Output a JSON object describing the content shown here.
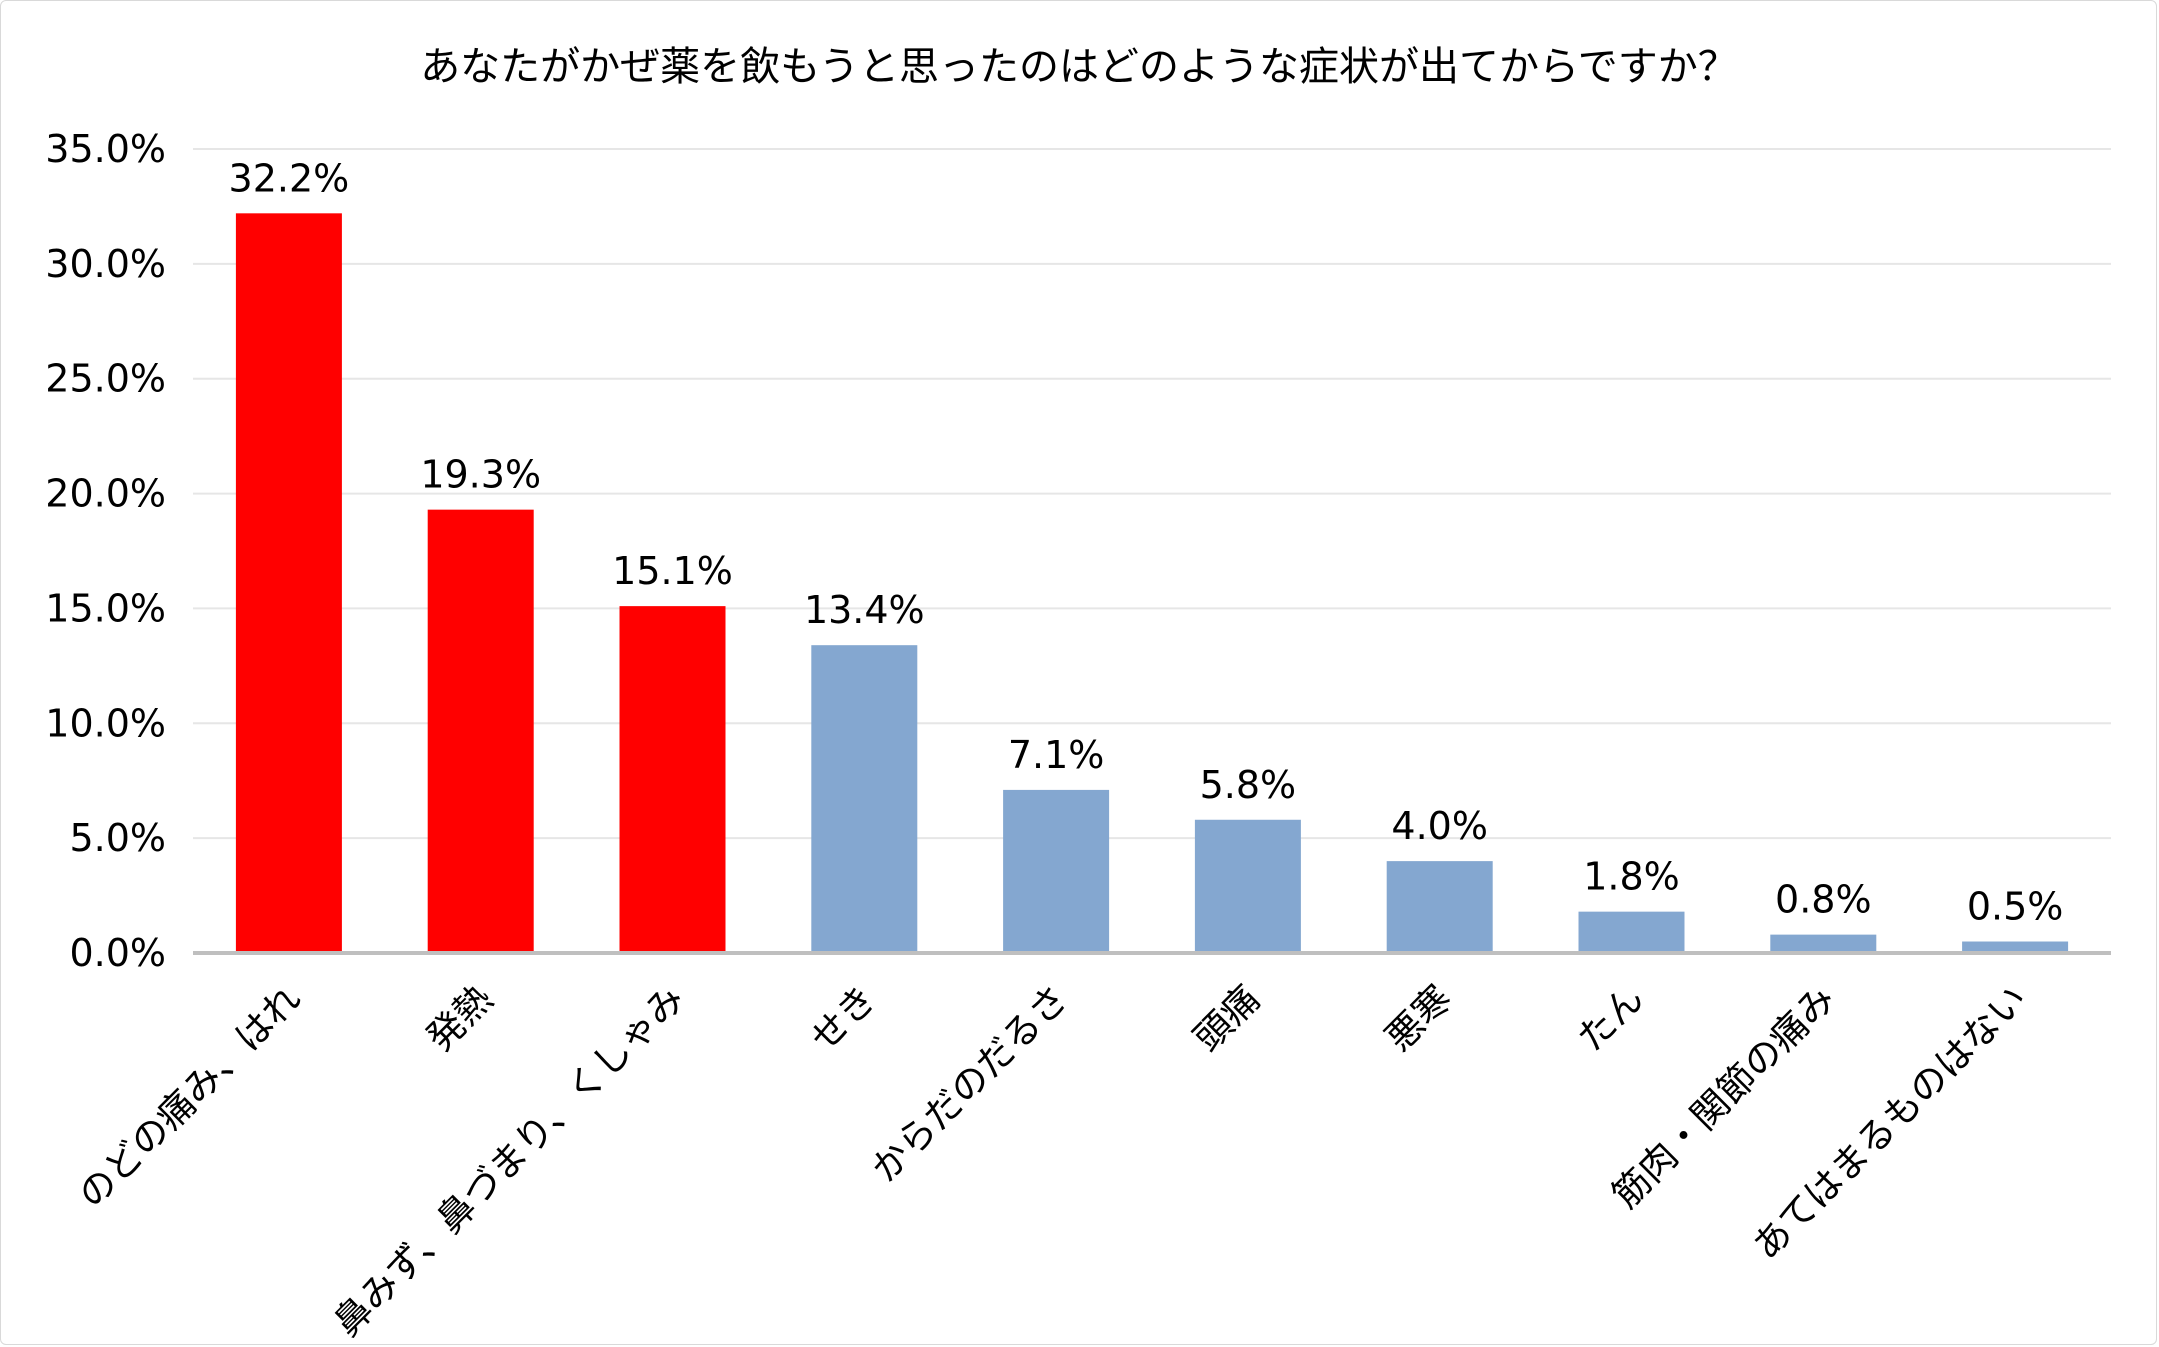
{
  "chart_data": {
    "type": "bar",
    "title": "あなたがかぜ薬を飲もうと思ったのはどのような症状が出てからですか？",
    "xlabel": "",
    "ylabel": "",
    "ylim": [
      0,
      35
    ],
    "yticks": [
      "0.0%",
      "5.0%",
      "10.0%",
      "15.0%",
      "20.0%",
      "25.0%",
      "30.0%",
      "35.0%"
    ],
    "ytick_values": [
      0,
      5,
      10,
      15,
      20,
      25,
      30,
      35
    ],
    "grid": true,
    "legend": "none",
    "categories": [
      "のどの痛み、はれ",
      "発熱",
      "鼻みず、鼻づまり、くしゃみ",
      "せき",
      "からだのだるさ",
      "頭痛",
      "悪寒",
      "たん",
      "筋肉・関節の痛み",
      "あてはまるものはない"
    ],
    "values": [
      32.2,
      19.3,
      15.1,
      13.4,
      7.1,
      5.8,
      4.0,
      1.8,
      0.8,
      0.5
    ],
    "data_labels": [
      "32.2%",
      "19.3%",
      "15.1%",
      "13.4%",
      "7.1%",
      "5.8%",
      "4.0%",
      "1.8%",
      "0.8%",
      "0.5%"
    ],
    "highlight_count": 3,
    "colors": {
      "highlight": "#ff0000",
      "default": "#84a7d0",
      "grid": "#e6e6e6",
      "axis": "#bfbfbf"
    }
  }
}
